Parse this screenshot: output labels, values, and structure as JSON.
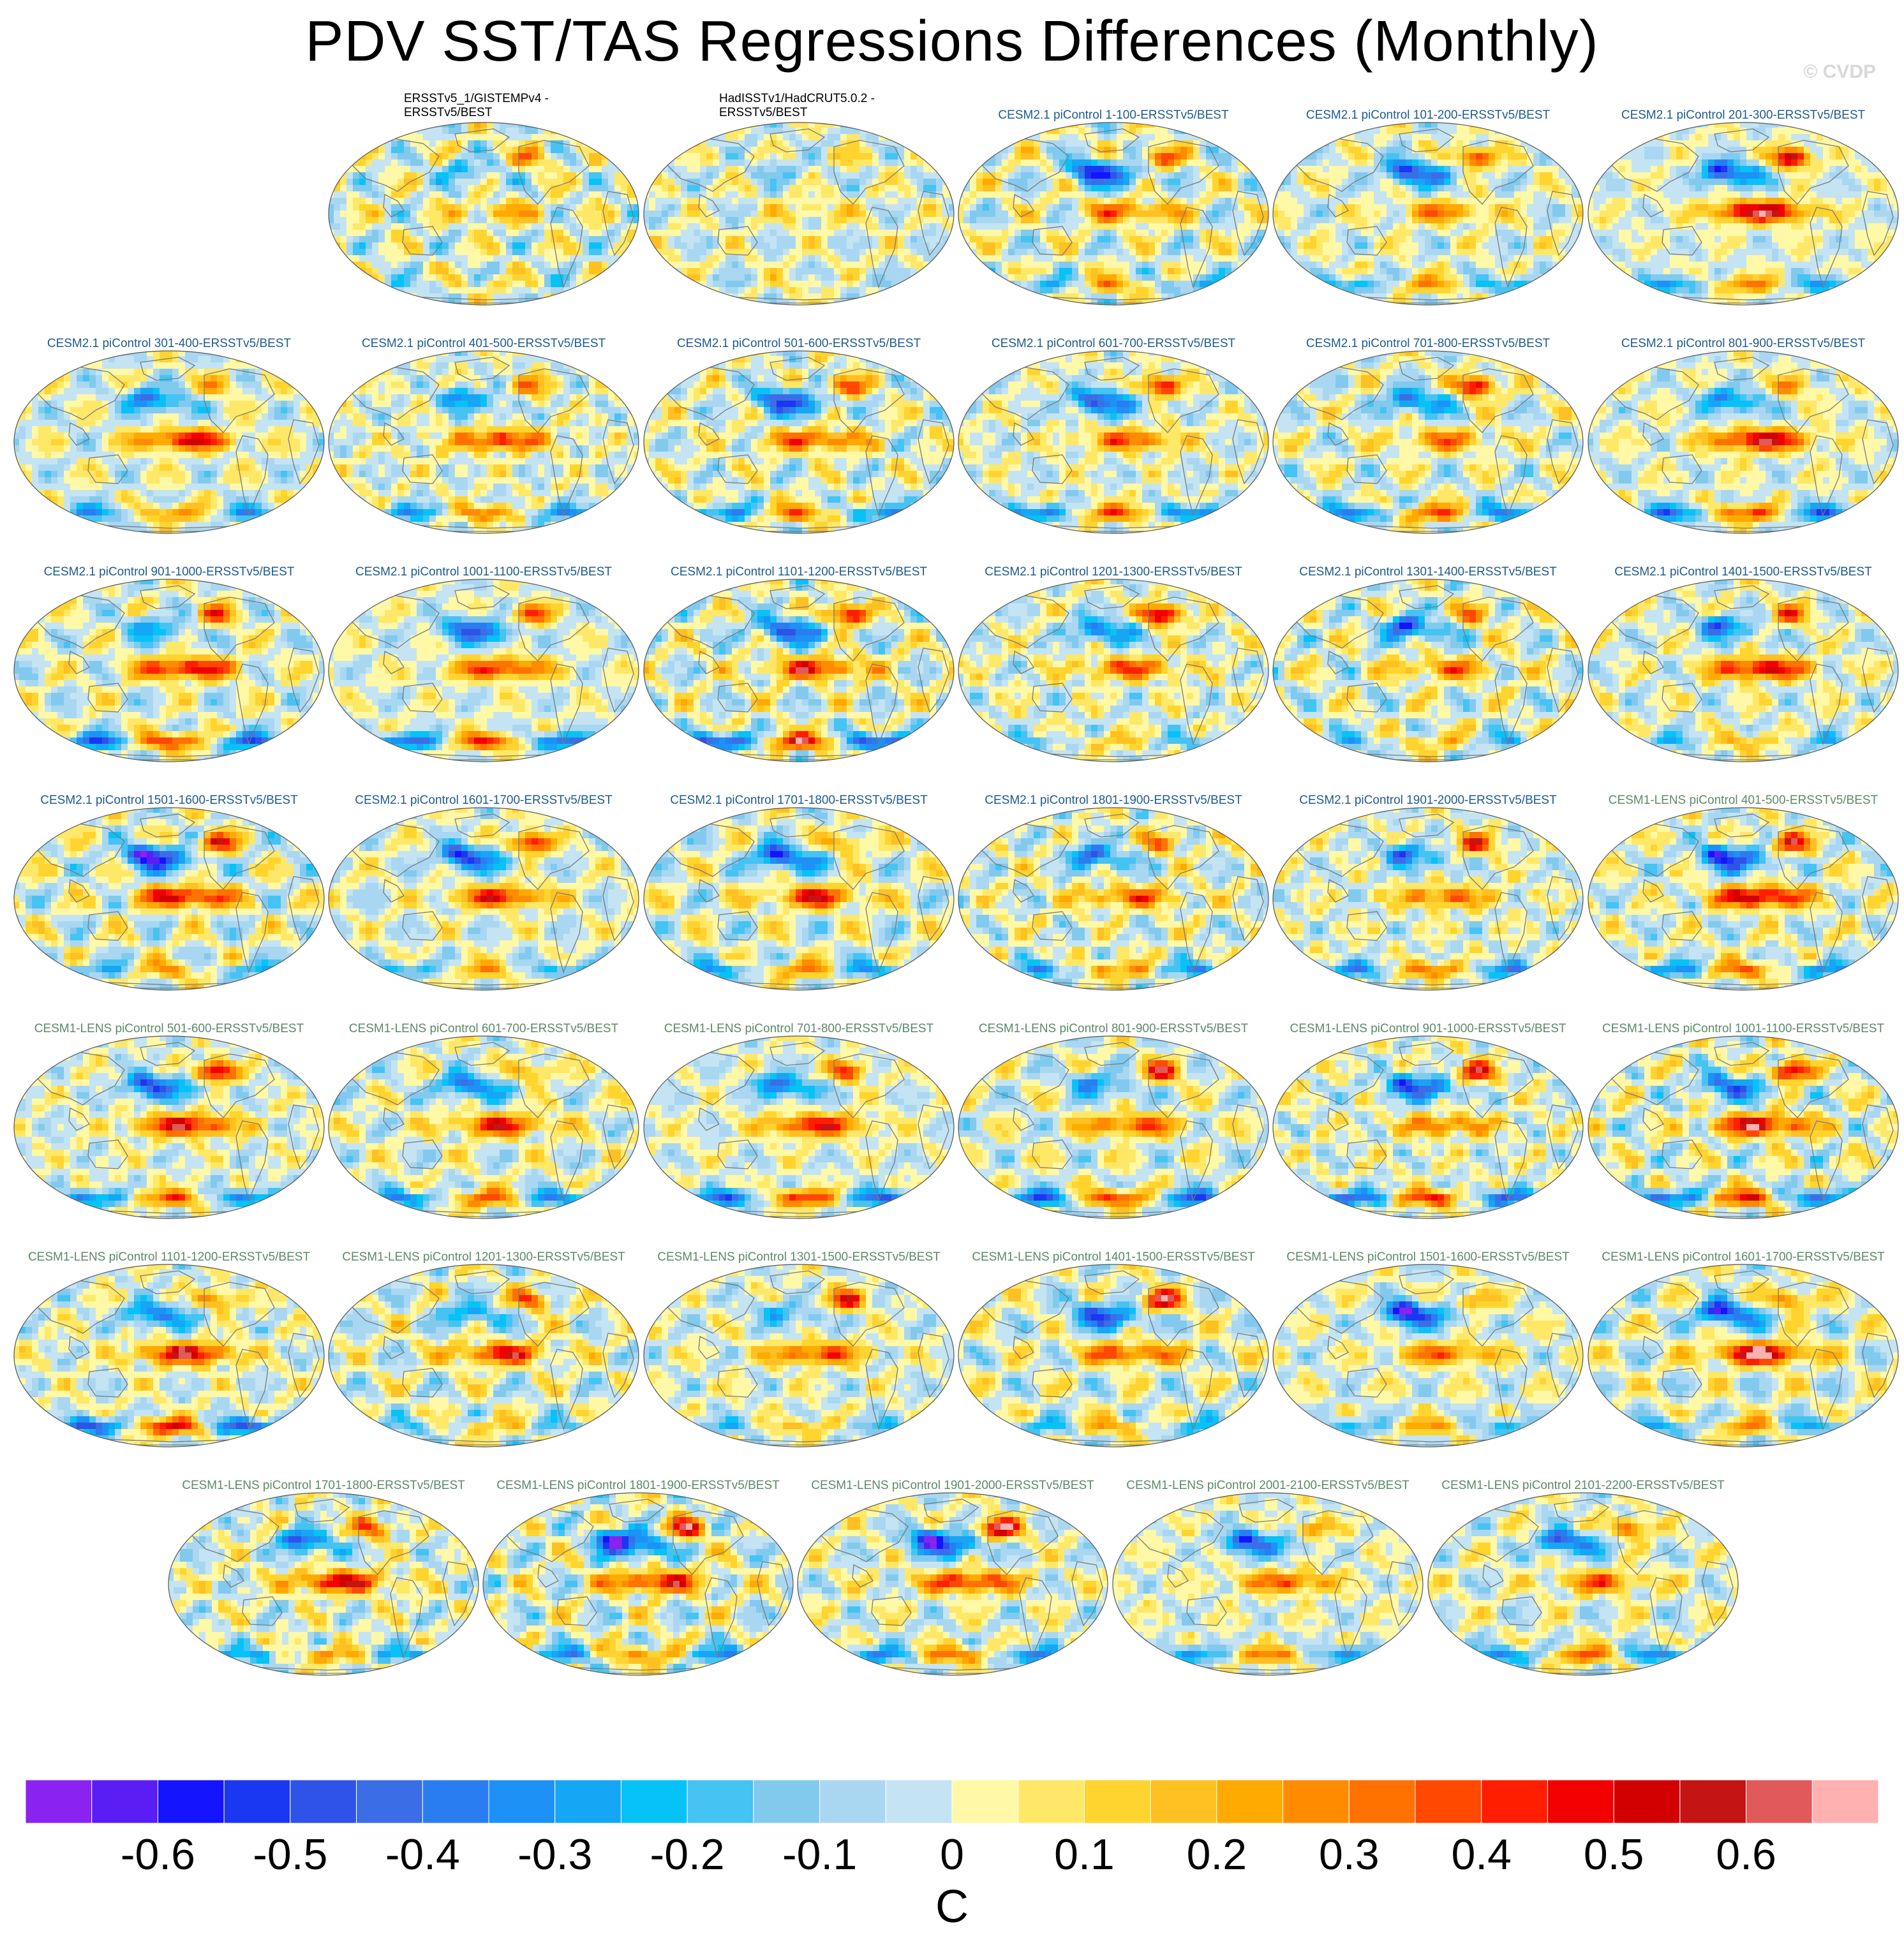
{
  "chart_data": {
    "type": "heatmap",
    "title": "PDV SST/TAS Regressions Differences (Monthly)",
    "watermark": "© CVDP",
    "colorbar": {
      "label": "C",
      "ticks": [
        "-0.6",
        "-0.5",
        "-0.4",
        "-0.3",
        "-0.2",
        "-0.1",
        "0",
        "0.1",
        "0.2",
        "0.3",
        "0.4",
        "0.5",
        "0.6"
      ],
      "colors": [
        "#8a22f0",
        "#5a1ef5",
        "#1414ff",
        "#1a37f2",
        "#2f52e8",
        "#3b6ee6",
        "#2a7df0",
        "#1d91f5",
        "#15a6f5",
        "#06c2f7",
        "#45c3f2",
        "#82c9ee",
        "#a9d7f1",
        "#c4e4f3",
        "#fff8a6",
        "#ffe868",
        "#ffd42e",
        "#ffc022",
        "#ffaa00",
        "#ff8c00",
        "#ff7200",
        "#ff4800",
        "#ff1e00",
        "#f20000",
        "#d20000",
        "#c41414",
        "#e05a5a",
        "#ffb0b0"
      ]
    },
    "panels": [
      {
        "title_line1": "ERSSTv5_1/GISTEMPv4 -",
        "title_line2": "ERSSTv5/BEST",
        "style": "obs",
        "seed": 1,
        "intensity": 0.35
      },
      {
        "title_line1": "HadISSTv1/HadCRUT5.0.2 -",
        "title_line2": "ERSSTv5/BEST",
        "style": "obs",
        "seed": 2,
        "intensity": 0.25
      },
      {
        "title": "CESM2.1 piControl 1-100-ERSSTv5/BEST",
        "style": "cesm2",
        "seed": 3,
        "intensity": 0.8
      },
      {
        "title": "CESM2.1 piControl 101-200-ERSSTv5/BEST",
        "style": "cesm2",
        "seed": 4,
        "intensity": 0.8
      },
      {
        "title": "CESM2.1 piControl 201-300-ERSSTv5/BEST",
        "style": "cesm2",
        "seed": 5,
        "intensity": 0.9
      },
      {
        "title": "CESM2.1 piControl 301-400-ERSSTv5/BEST",
        "style": "cesm2",
        "seed": 6,
        "intensity": 0.8
      },
      {
        "title": "CESM2.1 piControl 401-500-ERSSTv5/BEST",
        "style": "cesm2",
        "seed": 7,
        "intensity": 0.8
      },
      {
        "title": "CESM2.1 piControl 501-600-ERSSTv5/BEST",
        "style": "cesm2",
        "seed": 8,
        "intensity": 0.8
      },
      {
        "title": "CESM2.1 piControl 601-700-ERSSTv5/BEST",
        "style": "cesm2",
        "seed": 9,
        "intensity": 0.85
      },
      {
        "title": "CESM2.1 piControl 701-800-ERSSTv5/BEST",
        "style": "cesm2",
        "seed": 10,
        "intensity": 0.8
      },
      {
        "title": "CESM2.1 piControl 801-900-ERSSTv5/BEST",
        "style": "cesm2",
        "seed": 11,
        "intensity": 0.85
      },
      {
        "title": "CESM2.1 piControl 901-1000-ERSSTv5/BEST",
        "style": "cesm2",
        "seed": 12,
        "intensity": 0.85
      },
      {
        "title": "CESM2.1 piControl 1001-1100-ERSSTv5/BEST",
        "style": "cesm2",
        "seed": 13,
        "intensity": 0.8
      },
      {
        "title": "CESM2.1 piControl 1101-1200-ERSSTv5/BEST",
        "style": "cesm2",
        "seed": 14,
        "intensity": 0.9
      },
      {
        "title": "CESM2.1 piControl 1201-1300-ERSSTv5/BEST",
        "style": "cesm2",
        "seed": 15,
        "intensity": 0.85
      },
      {
        "title": "CESM2.1 piControl 1301-1400-ERSSTv5/BEST",
        "style": "cesm2",
        "seed": 16,
        "intensity": 0.8
      },
      {
        "title": "CESM2.1 piControl 1401-1500-ERSSTv5/BEST",
        "style": "cesm2",
        "seed": 17,
        "intensity": 0.8
      },
      {
        "title": "CESM2.1 piControl 1501-1600-ERSSTv5/BEST",
        "style": "cesm2",
        "seed": 18,
        "intensity": 0.85
      },
      {
        "title": "CESM2.1 piControl 1601-1700-ERSSTv5/BEST",
        "style": "cesm2",
        "seed": 19,
        "intensity": 0.8
      },
      {
        "title": "CESM2.1 piControl 1701-1800-ERSSTv5/BEST",
        "style": "cesm2",
        "seed": 20,
        "intensity": 0.9
      },
      {
        "title": "CESM2.1 piControl 1801-1900-ERSSTv5/BEST",
        "style": "cesm2",
        "seed": 21,
        "intensity": 0.8
      },
      {
        "title": "CESM2.1 piControl 1901-2000-ERSSTv5/BEST",
        "style": "cesm2",
        "seed": 22,
        "intensity": 0.9
      },
      {
        "title": "CESM1-LENS piControl 401-500-ERSSTv5/BEST",
        "style": "cesm1",
        "seed": 23,
        "intensity": 0.85
      },
      {
        "title": "CESM1-LENS piControl 501-600-ERSSTv5/BEST",
        "style": "cesm1",
        "seed": 24,
        "intensity": 0.85
      },
      {
        "title": "CESM1-LENS piControl 601-700-ERSSTv5/BEST",
        "style": "cesm1",
        "seed": 25,
        "intensity": 0.8
      },
      {
        "title": "CESM1-LENS piControl 701-800-ERSSTv5/BEST",
        "style": "cesm1",
        "seed": 26,
        "intensity": 0.95
      },
      {
        "title": "CESM1-LENS piControl 801-900-ERSSTv5/BEST",
        "style": "cesm1",
        "seed": 27,
        "intensity": 0.9
      },
      {
        "title": "CESM1-LENS piControl 901-1000-ERSSTv5/BEST",
        "style": "cesm1",
        "seed": 28,
        "intensity": 0.85
      },
      {
        "title": "CESM1-LENS piControl 1001-1100-ERSSTv5/BEST",
        "style": "cesm1",
        "seed": 29,
        "intensity": 0.8
      },
      {
        "title": "CESM1-LENS piControl 1101-1200-ERSSTv5/BEST",
        "style": "cesm1",
        "seed": 30,
        "intensity": 0.85
      },
      {
        "title": "CESM1-LENS piControl 1201-1300-ERSSTv5/BEST",
        "style": "cesm1",
        "seed": 31,
        "intensity": 0.8
      },
      {
        "title": "CESM1-LENS piControl 1301-1500-ERSSTv5/BEST",
        "style": "cesm1",
        "seed": 32,
        "intensity": 0.8
      },
      {
        "title": "CESM1-LENS piControl 1401-1500-ERSSTv5/BEST",
        "style": "cesm1",
        "seed": 33,
        "intensity": 0.9
      },
      {
        "title": "CESM1-LENS piControl 1501-1600-ERSSTv5/BEST",
        "style": "cesm1",
        "seed": 34,
        "intensity": 0.9
      },
      {
        "title": "CESM1-LENS piControl 1601-1700-ERSSTv5/BEST",
        "style": "cesm1",
        "seed": 35,
        "intensity": 0.9
      },
      {
        "title": "CESM1-LENS piControl 1701-1800-ERSSTv5/BEST",
        "style": "cesm1",
        "seed": 36,
        "intensity": 0.8
      },
      {
        "title": "CESM1-LENS piControl 1801-1900-ERSSTv5/BEST",
        "style": "cesm1",
        "seed": 37,
        "intensity": 0.85
      },
      {
        "title": "CESM1-LENS piControl 1901-2000-ERSSTv5/BEST",
        "style": "cesm1",
        "seed": 38,
        "intensity": 0.9
      },
      {
        "title": "CESM1-LENS piControl 2001-2100-ERSSTv5/BEST",
        "style": "cesm1",
        "seed": 39,
        "intensity": 0.8
      },
      {
        "title": "CESM1-LENS piControl 2101-2200-ERSSTv5/BEST",
        "style": "cesm1",
        "seed": 40,
        "intensity": 0.85
      }
    ]
  }
}
